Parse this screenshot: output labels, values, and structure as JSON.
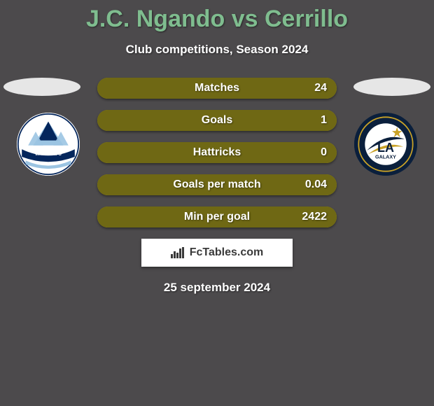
{
  "background_color": "#4c4a4c",
  "title": {
    "text": "J.C. Ngando vs Cerrillo",
    "color": "#7fbd8f",
    "fontsize": 34
  },
  "subtitle": {
    "text": "Club competitions, Season 2024",
    "color": "#ffffff",
    "fontsize": 17
  },
  "oval_color": "#e6e6e6",
  "left_club": {
    "name": "Vancouver Whitecaps FC",
    "bg": "#ffffff",
    "primary": "#04265c",
    "accent": "#9bc4e2"
  },
  "right_club": {
    "name": "LA Galaxy",
    "bg": "#0a1f3c",
    "ring": "#c9a227",
    "swoosh": "#d8d8d8",
    "text": "#0a1f3c"
  },
  "bars": {
    "track_color": "#a59c1f",
    "fill_color": "#6f6814",
    "label_color": "#ffffff",
    "value_color": "#ffffff",
    "items": [
      {
        "label": "Matches",
        "left_val": "",
        "right_val": "24",
        "fill_side": "right",
        "fill_pct": 100
      },
      {
        "label": "Goals",
        "left_val": "",
        "right_val": "1",
        "fill_side": "right",
        "fill_pct": 100
      },
      {
        "label": "Hattricks",
        "left_val": "",
        "right_val": "0",
        "fill_side": "right",
        "fill_pct": 100
      },
      {
        "label": "Goals per match",
        "left_val": "",
        "right_val": "0.04",
        "fill_side": "right",
        "fill_pct": 100
      },
      {
        "label": "Min per goal",
        "left_val": "",
        "right_val": "2422",
        "fill_side": "right",
        "fill_pct": 100
      }
    ]
  },
  "brand": {
    "bg": "#ffffff",
    "text": "FcTables.com",
    "text_color": "#3a3a3a"
  },
  "date": {
    "text": "25 september 2024",
    "color": "#ffffff"
  }
}
